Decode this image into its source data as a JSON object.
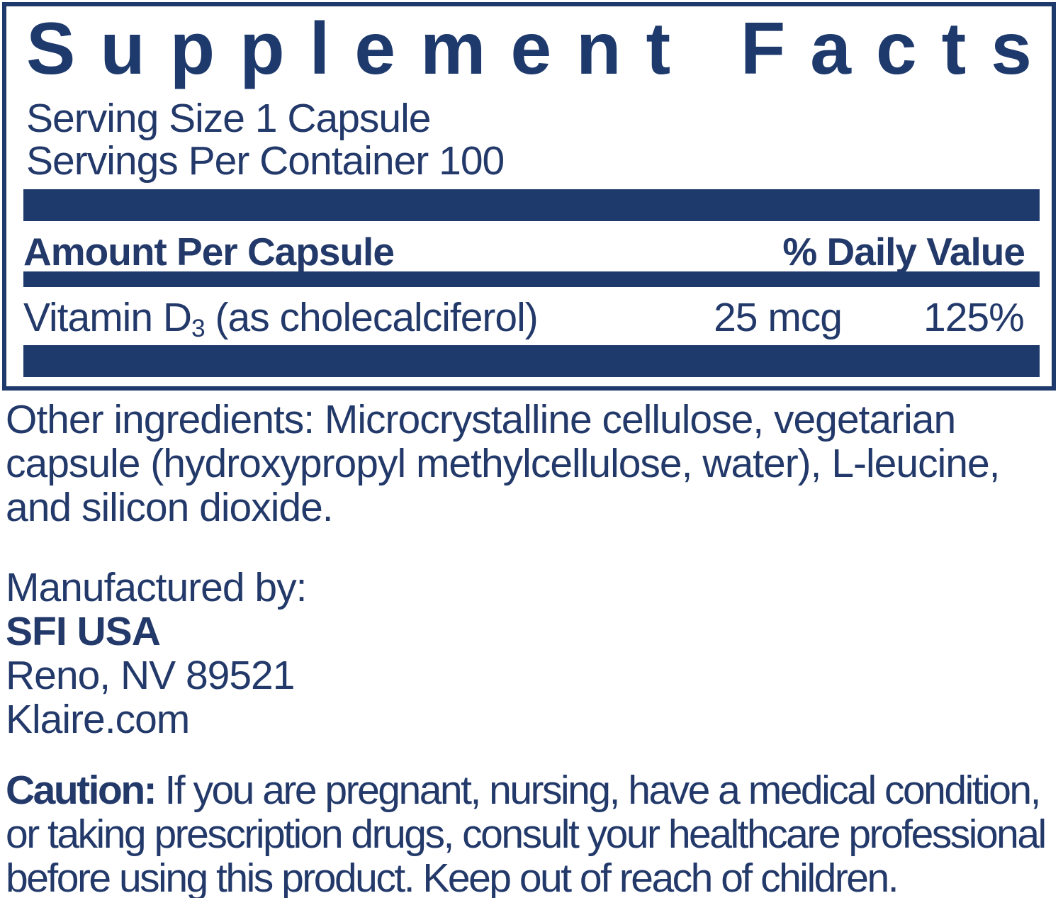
{
  "colors": {
    "navy": "#1e3a6d",
    "text": "#22396a",
    "background": "#ffffff"
  },
  "panel": {
    "title": "Supplement Facts",
    "serving_size": "Serving Size 1 Capsule",
    "servings_per_container": "Servings Per Container 100",
    "columns": {
      "amount": "Amount Per Capsule",
      "daily_value": "% Daily Value"
    },
    "rows": [
      {
        "name_prefix": "Vitamin D",
        "name_subscript": "3",
        "name_suffix": " (as cholecalciferol)",
        "amount": "25 mcg",
        "daily_value": "125%"
      }
    ]
  },
  "other_ingredients": {
    "label": "Other ingredients:",
    "text": " Microcrystalline cellulose, vegetarian capsule (hydroxypropyl methylcellulose, water), L-leucine, and silicon dioxide."
  },
  "manufacturer": {
    "label": "Manufactured by:",
    "name": "SFI USA",
    "address": "Reno, NV 89521",
    "website": "Klaire.com"
  },
  "caution": {
    "label": "Caution:",
    "text": " If you are pregnant, nursing, have a medical condition, or taking prescription drugs, consult your healthcare professional before using this product. Keep out of reach of children."
  }
}
